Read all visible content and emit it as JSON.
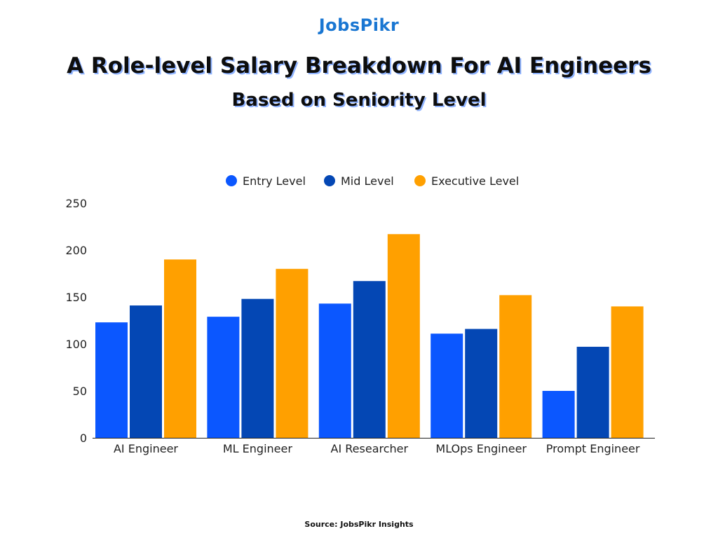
{
  "brand": "JobsPikr",
  "title": "A Role-level Salary Breakdown For AI Engineers",
  "subtitle": "Based on Seniority Level",
  "source": "Source: JobsPikr Insights",
  "colors": {
    "entry": "#0b57ff",
    "mid": "#0447b4",
    "executive": "#ffa000",
    "axis": "#222222"
  },
  "chart_data": {
    "type": "bar",
    "categories": [
      "AI Engineer",
      "ML Engineer",
      "AI Researcher",
      "MLOps Engineer",
      "Prompt Engineer"
    ],
    "series": [
      {
        "name": "Entry Level",
        "values": [
          123,
          129,
          143,
          111,
          50
        ]
      },
      {
        "name": "Mid Level",
        "values": [
          141,
          148,
          167,
          116,
          97
        ]
      },
      {
        "name": "Executive Level",
        "values": [
          190,
          180,
          217,
          152,
          140
        ]
      }
    ],
    "ylim": [
      0,
      250
    ],
    "yticks": [
      0,
      50,
      100,
      150,
      200,
      250
    ],
    "grid": false,
    "legend": "top-center"
  }
}
